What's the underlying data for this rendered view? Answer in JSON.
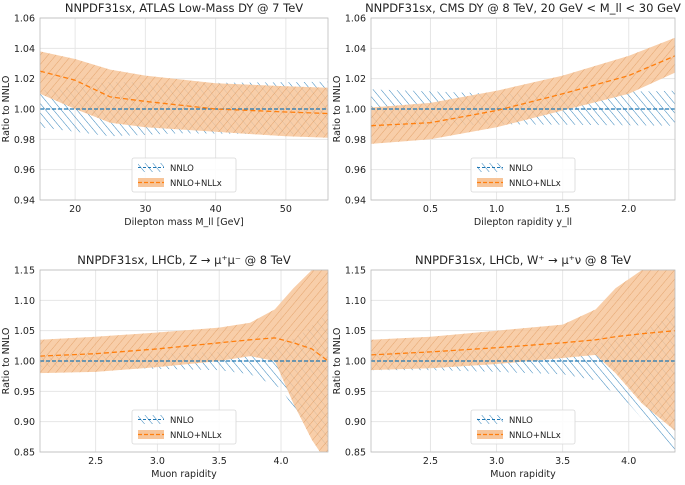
{
  "colors": {
    "nnlo": "#1f77b4",
    "nll": "#ff7f0e",
    "band_fill": "#f7c59a",
    "grid": "#e6e6e6"
  },
  "chart_data": [
    {
      "type": "area",
      "title": "NNPDF31sx, ATLAS Low-Mass DY @ 7 TeV",
      "xlabel": "Dilepton mass M_ll [GeV]",
      "ylabel": "Ratio to NNLO",
      "xlim": [
        15,
        56
      ],
      "ylim": [
        0.94,
        1.06
      ],
      "xticks": [
        20,
        30,
        40,
        50
      ],
      "xtick_labels": [
        "20",
        "30",
        "40",
        "50"
      ],
      "yticks": [
        0.94,
        0.96,
        0.98,
        1.0,
        1.02,
        1.04,
        1.06
      ],
      "ytick_labels": [
        "0.94",
        "0.96",
        "0.98",
        "1.00",
        "1.02",
        "1.04",
        "1.06"
      ],
      "legend": [
        "NNLO",
        "NNLO+NLLx"
      ],
      "legend_position": "bottom-center",
      "series": [
        {
          "name": "NNLO",
          "x": [
            15,
            25,
            35,
            56
          ],
          "center": [
            1.0,
            1.0,
            1.0,
            1.0
          ],
          "lower": [
            0.988,
            0.982,
            0.984,
            0.983
          ],
          "upper": [
            1.012,
            1.018,
            1.017,
            1.018
          ]
        },
        {
          "name": "NNLO+NLLx",
          "x": [
            15,
            20,
            25,
            30,
            40,
            50,
            56
          ],
          "center": [
            1.025,
            1.019,
            1.008,
            1.005,
            1.0,
            0.998,
            0.997
          ],
          "lower": [
            1.01,
            1.0,
            0.991,
            0.988,
            0.985,
            0.982,
            0.981
          ],
          "upper": [
            1.038,
            1.033,
            1.026,
            1.022,
            1.017,
            1.015,
            1.014
          ]
        }
      ]
    },
    {
      "type": "area",
      "title": "NNPDF31sx, CMS DY @ 8 TeV, 20 GeV < M_ll < 30 GeV",
      "xlabel": "Dilepton rapidity y_ll",
      "ylabel": "Ratio to NNLO",
      "xlim": [
        0.05,
        2.35
      ],
      "ylim": [
        0.94,
        1.06
      ],
      "xticks": [
        0.5,
        1.0,
        1.5,
        2.0
      ],
      "xtick_labels": [
        "0.5",
        "1.0",
        "1.5",
        "2.0"
      ],
      "yticks": [
        0.94,
        0.96,
        0.98,
        1.0,
        1.02,
        1.04,
        1.06
      ],
      "ytick_labels": [
        "0.94",
        "0.96",
        "0.98",
        "1.00",
        "1.02",
        "1.04",
        "1.06"
      ],
      "legend": [
        "NNLO",
        "NNLO+NLLx"
      ],
      "legend_position": "bottom-center",
      "series": [
        {
          "name": "NNLO",
          "x": [
            0.05,
            1.0,
            2.35
          ],
          "center": [
            1.0,
            1.0,
            1.0
          ],
          "lower": [
            0.987,
            0.99,
            0.989
          ],
          "upper": [
            1.013,
            1.01,
            1.012
          ]
        },
        {
          "name": "NNLO+NLLx",
          "x": [
            0.05,
            0.5,
            1.0,
            1.5,
            2.0,
            2.35
          ],
          "center": [
            0.989,
            0.991,
            0.999,
            1.01,
            1.022,
            1.035
          ],
          "lower": [
            0.977,
            0.98,
            0.988,
            0.999,
            1.01,
            1.024
          ],
          "upper": [
            1.001,
            1.004,
            1.012,
            1.022,
            1.035,
            1.047
          ]
        }
      ]
    },
    {
      "type": "area",
      "title": "NNPDF31sx, LHCb, Z → μ⁺μ⁻ @ 8 TeV",
      "xlabel": "Muon rapidity",
      "ylabel": "Ratio to NNLO",
      "xlim": [
        2.05,
        4.38
      ],
      "ylim": [
        0.85,
        1.15
      ],
      "xticks": [
        2.5,
        3.0,
        3.5,
        4.0
      ],
      "xtick_labels": [
        "2.5",
        "3.0",
        "3.5",
        "4.0"
      ],
      "yticks": [
        0.85,
        0.9,
        0.95,
        1.0,
        1.05,
        1.1,
        1.15
      ],
      "ytick_labels": [
        "0.85",
        "0.90",
        "0.95",
        "1.00",
        "1.05",
        "1.10",
        "1.15"
      ],
      "legend": [
        "NNLO",
        "NNLO+NLLx"
      ],
      "legend_position": "bottom-center",
      "series": [
        {
          "name": "NNLO",
          "x": [
            2.05,
            2.5,
            3.0,
            3.5,
            3.75,
            4.0,
            4.2,
            4.38
          ],
          "center": [
            1.0,
            1.0,
            1.0,
            1.0,
            1.0,
            1.0,
            1.0,
            1.0
          ],
          "lower": [
            0.99,
            0.99,
            0.987,
            0.985,
            0.978,
            0.955,
            0.89,
            0.845
          ],
          "upper": [
            1.01,
            1.01,
            1.012,
            1.015,
            1.018,
            1.025,
            1.05,
            1.08
          ]
        },
        {
          "name": "NNLO+NLLx",
          "x": [
            2.05,
            2.5,
            3.0,
            3.5,
            3.75,
            3.95,
            4.1,
            4.25,
            4.38
          ],
          "center": [
            1.008,
            1.012,
            1.02,
            1.03,
            1.035,
            1.038,
            1.03,
            1.02,
            1.0
          ],
          "lower": [
            0.98,
            0.982,
            0.99,
            1.0,
            1.008,
            1.0,
            0.93,
            0.87,
            0.83
          ],
          "upper": [
            1.035,
            1.04,
            1.047,
            1.055,
            1.063,
            1.085,
            1.12,
            1.15,
            1.17
          ]
        }
      ]
    },
    {
      "type": "area",
      "title": "NNPDF31sx, LHCb, W⁺ → μ⁺ν @ 8 TeV",
      "xlabel": "Muon rapidity",
      "ylabel": "Ratio to NNLO",
      "xlim": [
        2.05,
        4.35
      ],
      "ylim": [
        0.85,
        1.15
      ],
      "xticks": [
        2.5,
        3.0,
        3.5,
        4.0
      ],
      "xtick_labels": [
        "2.5",
        "3.0",
        "3.5",
        "4.0"
      ],
      "yticks": [
        0.85,
        0.9,
        0.95,
        1.0,
        1.05,
        1.1,
        1.15
      ],
      "ytick_labels": [
        "0.85",
        "0.90",
        "0.95",
        "1.00",
        "1.05",
        "1.10",
        "1.15"
      ],
      "legend": [
        "NNLO",
        "NNLO+NLLx"
      ],
      "legend_position": "bottom-center",
      "series": [
        {
          "name": "NNLO",
          "x": [
            2.05,
            2.5,
            3.0,
            3.5,
            3.75,
            4.0,
            4.2,
            4.35
          ],
          "center": [
            1.0,
            1.0,
            1.0,
            1.0,
            1.0,
            1.0,
            1.0,
            1.0
          ],
          "lower": [
            0.985,
            0.985,
            0.982,
            0.978,
            0.968,
            0.93,
            0.88,
            0.84
          ],
          "upper": [
            1.015,
            1.015,
            1.018,
            1.022,
            1.028,
            1.04,
            1.06,
            1.08
          ]
        },
        {
          "name": "NNLO+NLLx",
          "x": [
            2.05,
            2.5,
            3.0,
            3.5,
            3.75,
            3.9,
            4.1,
            4.35
          ],
          "center": [
            1.01,
            1.015,
            1.022,
            1.03,
            1.035,
            1.04,
            1.045,
            1.05
          ],
          "lower": [
            0.985,
            0.988,
            0.995,
            1.005,
            1.01,
            0.98,
            0.93,
            0.885
          ],
          "upper": [
            1.035,
            1.04,
            1.05,
            1.06,
            1.085,
            1.12,
            1.15,
            1.17
          ]
        }
      ]
    }
  ]
}
